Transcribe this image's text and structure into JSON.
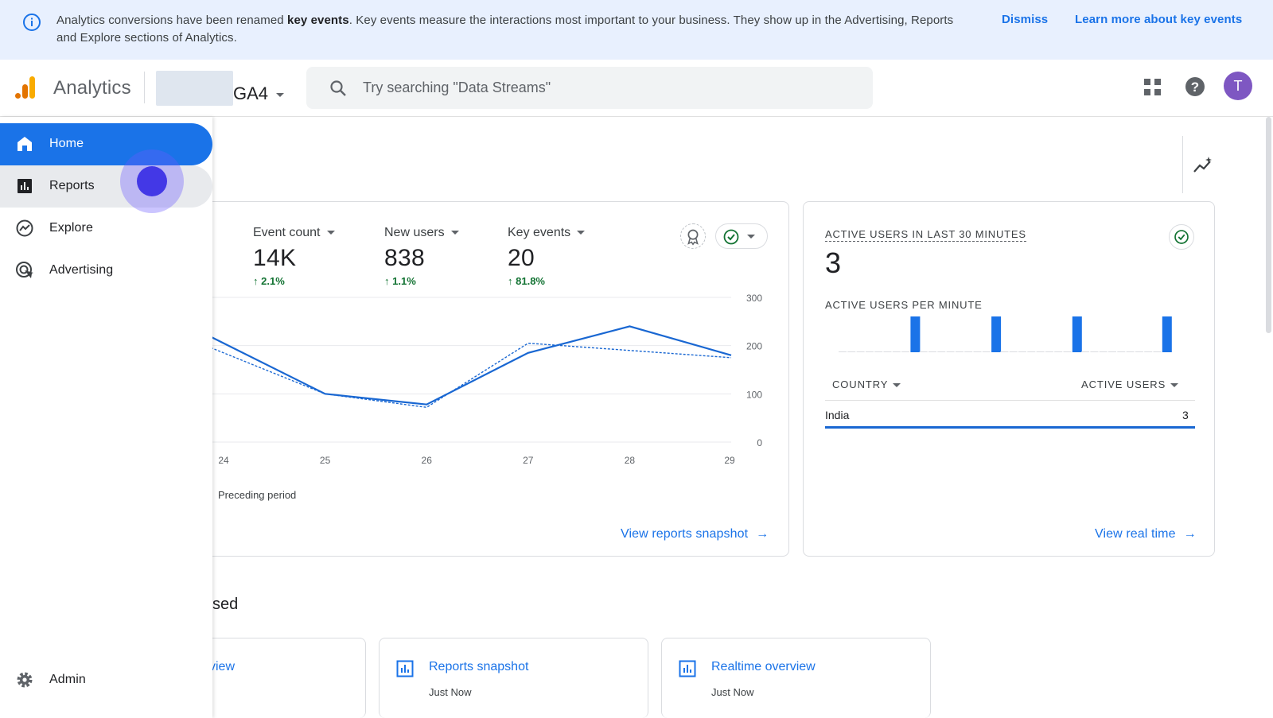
{
  "banner": {
    "text_prefix": "Analytics conversions have been renamed ",
    "text_bold": "key events",
    "text_suffix": ". Key events measure the interactions most important to your business. They show up in the Advertising, Reports and Explore sections of Analytics.",
    "dismiss": "Dismiss",
    "learn_more": "Learn more about key events",
    "icon": "info-icon"
  },
  "header": {
    "app_name": "Analytics",
    "property": "GA4",
    "search_placeholder": "Try searching \"Data Streams\"",
    "avatar_letter": "T",
    "avatar_color": "#7e57c2"
  },
  "sidebar": {
    "items": [
      {
        "label": "Home",
        "icon": "home-icon"
      },
      {
        "label": "Reports",
        "icon": "reports-icon"
      },
      {
        "label": "Explore",
        "icon": "explore-icon"
      },
      {
        "label": "Advertising",
        "icon": "advertising-icon"
      }
    ],
    "admin": "Admin"
  },
  "overview": {
    "metrics": [
      {
        "label": "Event count",
        "value": "14K",
        "delta": "2.1%"
      },
      {
        "label": "New users",
        "value": "838",
        "delta": "1.1%"
      },
      {
        "label": "Key events",
        "value": "20",
        "delta": "81.8%"
      }
    ],
    "legend_preceding": "Preceding period",
    "link": "View reports snapshot"
  },
  "chart_data": {
    "type": "line",
    "x": [
      "24",
      "25",
      "26",
      "27",
      "28",
      "29"
    ],
    "series": [
      {
        "values": [
          205,
          100,
          78,
          185,
          240,
          180
        ]
      },
      {
        "name": "Preceding period",
        "values": [
          185,
          100,
          72,
          205,
          190,
          175
        ]
      }
    ],
    "yticks": [
      "300",
      "200",
      "100",
      "0"
    ],
    "ylim": [
      0,
      300
    ],
    "grid": true
  },
  "realtime": {
    "title": "ACTIVE USERS IN LAST 30 MINUTES",
    "value": "3",
    "per_minute_label": "ACTIVE USERS PER MINUTE",
    "per_minute_values": [
      0,
      0,
      0,
      0,
      0,
      0,
      0,
      0,
      1,
      0,
      0,
      0,
      0,
      0,
      0,
      0,
      0,
      1,
      0,
      0,
      0,
      0,
      0,
      0,
      0,
      0,
      1,
      0,
      0,
      0,
      0,
      0,
      0,
      0,
      0,
      0,
      1
    ],
    "col_country": "COUNTRY",
    "col_users": "ACTIVE USERS",
    "rows": [
      {
        "country": "India",
        "users": "3"
      }
    ],
    "link": "View real time"
  },
  "recent": {
    "title_fragment": "sed",
    "cards": [
      {
        "title": "view",
        "sub": ""
      },
      {
        "title": "Reports snapshot",
        "sub": "Just Now"
      },
      {
        "title": "Realtime overview",
        "sub": "Just Now"
      }
    ]
  }
}
